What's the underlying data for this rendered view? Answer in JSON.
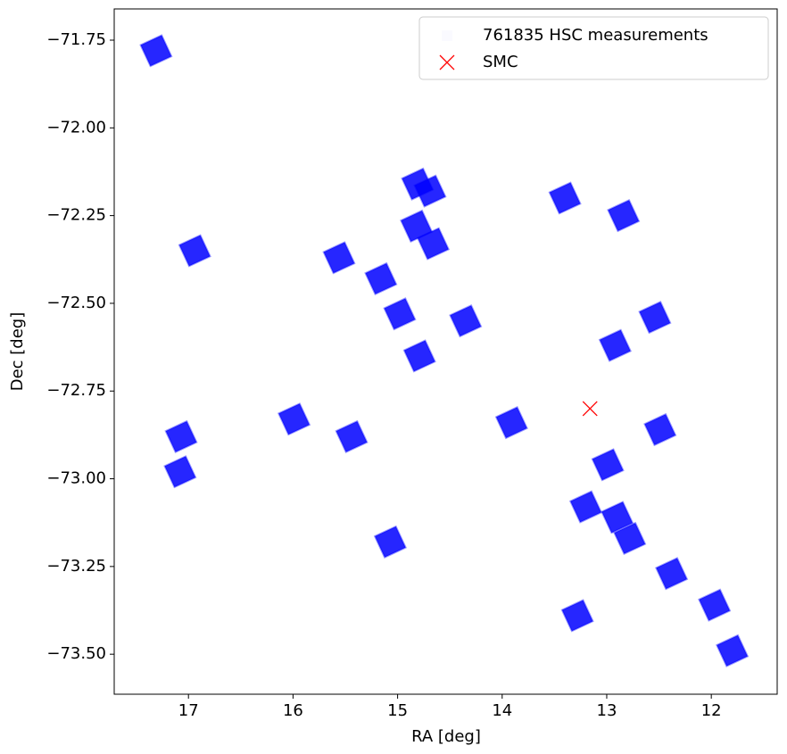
{
  "chart_data": {
    "type": "scatter",
    "xlabel": "RA [deg]",
    "ylabel": "Dec [deg]",
    "xlim": [
      17.71,
      11.37
    ],
    "ylim": [
      -73.614,
      -71.661
    ],
    "x_inverted": true,
    "xticks": [
      17,
      16,
      15,
      14,
      13,
      12
    ],
    "yticks": [
      {
        "value": -71.75,
        "label": "−71.75"
      },
      {
        "value": -72.0,
        "label": "−72.00"
      },
      {
        "value": -72.25,
        "label": "−72.25"
      },
      {
        "value": -72.5,
        "label": "−72.50"
      },
      {
        "value": -72.75,
        "label": "−72.75"
      },
      {
        "value": -73.0,
        "label": "−73.00"
      },
      {
        "value": -73.25,
        "label": "−73.25"
      },
      {
        "value": -73.5,
        "label": "−73.50"
      }
    ],
    "legend": "upper right",
    "series": [
      {
        "name": "761835 HSC measurements",
        "color": "#0000ff",
        "marker": "patch",
        "x": [
          17.31,
          16.94,
          14.81,
          14.69,
          13.4,
          12.84,
          14.66,
          14.82,
          15.56,
          15.16,
          14.98,
          14.35,
          12.54,
          14.79,
          12.92,
          15.99,
          15.44,
          13.91,
          17.07,
          17.08,
          12.49,
          12.99,
          13.2,
          12.9,
          12.78,
          15.07,
          12.38,
          13.28,
          11.97,
          11.8
        ],
        "values": [
          -71.78,
          -72.35,
          -72.16,
          -72.18,
          -72.2,
          -72.25,
          -72.33,
          -72.28,
          -72.37,
          -72.43,
          -72.53,
          -72.55,
          -72.54,
          -72.65,
          -72.62,
          -72.83,
          -72.88,
          -72.84,
          -72.88,
          -72.98,
          -72.86,
          -72.96,
          -73.08,
          -73.11,
          -73.17,
          -73.18,
          -73.27,
          -73.39,
          -73.36,
          -73.49
        ]
      },
      {
        "name": "SMC",
        "color": "#ff0000",
        "marker": "x",
        "x": [
          13.16
        ],
        "values": [
          -72.8
        ]
      }
    ]
  }
}
